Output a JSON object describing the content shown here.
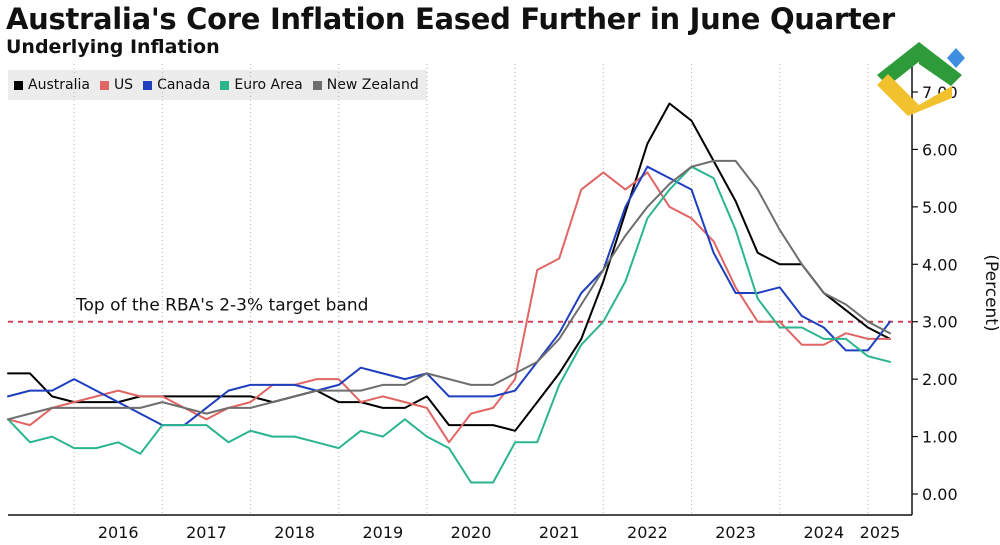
{
  "header": {
    "title": "Australia's Core Inflation Eased Further in June Quarter",
    "subtitle": "Underlying Inflation"
  },
  "chart_data": {
    "type": "line",
    "title": "Australia's Core Inflation Eased Further in June Quarter",
    "subtitle": "Underlying Inflation",
    "ylabel": "(Percent)",
    "ylim": [
      0,
      7
    ],
    "y_ticks": [
      "0.00",
      "1.00",
      "2.00",
      "3.00",
      "4.00",
      "5.00",
      "6.00",
      "7.00"
    ],
    "x_ticks": [
      "2016",
      "2017",
      "2018",
      "2019",
      "2020",
      "2021",
      "2022",
      "2023",
      "2024",
      "2025"
    ],
    "legend_position": "top-left",
    "grid": "vertical dotted at year boundaries",
    "x": [
      2015.25,
      2015.5,
      2015.75,
      2016.0,
      2016.25,
      2016.5,
      2016.75,
      2017.0,
      2017.25,
      2017.5,
      2017.75,
      2018.0,
      2018.25,
      2018.5,
      2018.75,
      2019.0,
      2019.25,
      2019.5,
      2019.75,
      2020.0,
      2020.25,
      2020.5,
      2020.75,
      2021.0,
      2021.25,
      2021.5,
      2021.75,
      2022.0,
      2022.25,
      2022.5,
      2022.75,
      2023.0,
      2023.25,
      2023.5,
      2023.75,
      2024.0,
      2024.25,
      2024.5,
      2024.75,
      2025.0,
      2025.25
    ],
    "series": [
      {
        "name": "Australia",
        "color": "#000000",
        "values": [
          2.1,
          2.1,
          1.7,
          1.6,
          1.6,
          1.6,
          1.7,
          1.7,
          1.7,
          1.7,
          1.7,
          1.7,
          1.6,
          1.7,
          1.8,
          1.6,
          1.6,
          1.5,
          1.5,
          1.7,
          1.2,
          1.2,
          1.2,
          1.1,
          1.6,
          2.1,
          2.7,
          3.7,
          4.9,
          6.1,
          6.8,
          6.5,
          5.8,
          5.1,
          4.2,
          4.0,
          4.0,
          3.5,
          3.2,
          2.9,
          2.7
        ]
      },
      {
        "name": "US",
        "color": "#e06666",
        "values": [
          1.3,
          1.2,
          1.5,
          1.6,
          1.7,
          1.8,
          1.7,
          1.7,
          1.5,
          1.3,
          1.5,
          1.6,
          1.9,
          1.9,
          2.0,
          2.0,
          1.6,
          1.7,
          1.6,
          1.5,
          0.9,
          1.4,
          1.5,
          2.0,
          3.9,
          4.1,
          5.3,
          5.6,
          5.3,
          5.6,
          5.0,
          4.8,
          4.4,
          3.6,
          3.0,
          3.0,
          2.6,
          2.6,
          2.8,
          2.7,
          2.7
        ]
      },
      {
        "name": "Canada",
        "color": "#1f3fbf",
        "values": [
          1.7,
          1.8,
          1.8,
          2.0,
          1.8,
          1.6,
          1.4,
          1.2,
          1.2,
          1.5,
          1.8,
          1.9,
          1.9,
          1.9,
          1.8,
          1.9,
          2.2,
          2.1,
          2.0,
          2.1,
          1.7,
          1.7,
          1.7,
          1.8,
          2.3,
          2.8,
          3.5,
          3.9,
          5.0,
          5.7,
          5.5,
          5.3,
          4.2,
          3.5,
          3.5,
          3.6,
          3.1,
          2.9,
          2.5,
          2.5,
          3.0
        ]
      },
      {
        "name": "Euro Area",
        "color": "#2bb58f",
        "values": [
          1.3,
          0.9,
          1.0,
          0.8,
          0.8,
          0.9,
          0.7,
          1.2,
          1.2,
          1.2,
          0.9,
          1.1,
          1.0,
          1.0,
          0.9,
          0.8,
          1.1,
          1.0,
          1.3,
          1.0,
          0.8,
          0.2,
          0.2,
          0.9,
          0.9,
          1.9,
          2.6,
          3.0,
          3.7,
          4.8,
          5.3,
          5.7,
          5.5,
          4.6,
          3.4,
          2.9,
          2.9,
          2.7,
          2.7,
          2.4,
          2.3
        ]
      },
      {
        "name": "New Zealand",
        "color": "#6e6e6e",
        "values": [
          1.3,
          1.4,
          1.5,
          1.5,
          1.5,
          1.5,
          1.5,
          1.6,
          1.5,
          1.4,
          1.5,
          1.5,
          1.6,
          1.7,
          1.8,
          1.8,
          1.8,
          1.9,
          1.9,
          2.1,
          2.0,
          1.9,
          1.9,
          2.1,
          2.3,
          2.7,
          3.3,
          3.9,
          4.5,
          5.0,
          5.4,
          5.7,
          5.8,
          5.8,
          5.3,
          4.6,
          4.0,
          3.5,
          3.3,
          3.0,
          2.8
        ]
      }
    ],
    "reference_line": {
      "y": 3.0,
      "label": "Top of the RBA's 2-3% target band",
      "color": "#d0405a"
    }
  }
}
